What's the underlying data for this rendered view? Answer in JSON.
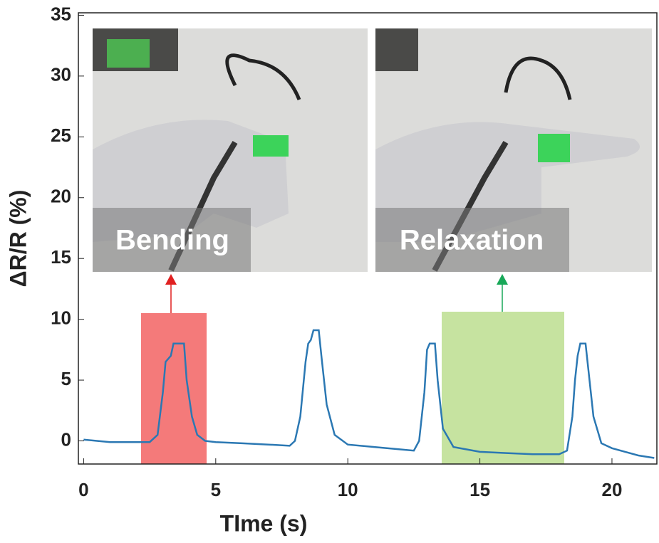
{
  "chart_data": {
    "type": "line",
    "xlabel": "TIme (s)",
    "ylabel": "ΔR/R (%)",
    "annotations": [
      "Bending",
      "Relaxation"
    ],
    "x": [
      0,
      0.5,
      1,
      2,
      2.5,
      2.8,
      3.0,
      3.1,
      3.3,
      3.4,
      3.6,
      3.8,
      3.9,
      4.1,
      4.3,
      4.6,
      5,
      6,
      7,
      7.8,
      8.0,
      8.2,
      8.4,
      8.5,
      8.6,
      8.7,
      8.9,
      9.0,
      9.2,
      9.5,
      10,
      11,
      12,
      12.5,
      12.7,
      12.9,
      13.0,
      13.1,
      13.3,
      13.4,
      13.6,
      14,
      15,
      16,
      17,
      18,
      18.3,
      18.5,
      18.6,
      18.7,
      18.8,
      19.0,
      19.1,
      19.3,
      19.6,
      20,
      21,
      21.6
    ],
    "values": [
      0.1,
      0,
      -0.1,
      -0.1,
      -0.1,
      0.5,
      4,
      6.5,
      7,
      8,
      8,
      8,
      5,
      2,
      0.5,
      0,
      -0.1,
      -0.2,
      -0.3,
      -0.4,
      0,
      2,
      6.5,
      8,
      8.3,
      9.1,
      9.1,
      7,
      3,
      0.5,
      -0.3,
      -0.5,
      -0.7,
      -0.8,
      0,
      4,
      7.5,
      8,
      8,
      5,
      1,
      -0.5,
      -0.9,
      -1,
      -1.1,
      -1.1,
      -0.8,
      2,
      5,
      7,
      8,
      8,
      6,
      2,
      -0.2,
      -0.6,
      -1.2,
      -1.4
    ],
    "color": "#2b78b3",
    "xlim": [
      -0.2,
      21.7
    ],
    "xticks": [
      0,
      5,
      10,
      15,
      20
    ],
    "ylim": [
      -1.9,
      35.2
    ],
    "yticks": [
      0,
      5,
      10,
      15,
      20,
      25,
      30,
      35
    ]
  }
}
